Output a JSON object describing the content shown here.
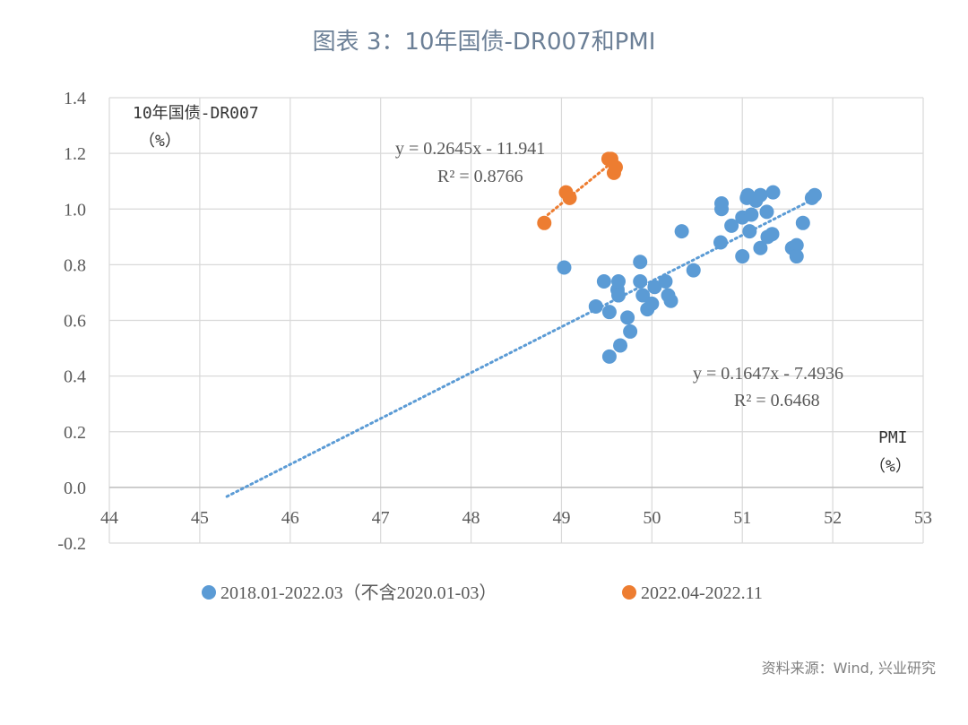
{
  "title": "图表 3：10年国债-DR007和PMI",
  "source": "资料来源：Wind, 兴业研究",
  "chart_data": {
    "type": "scatter",
    "ylabel_line1": "10年国债-DR007",
    "ylabel_line2": "（%）",
    "xlabel_line1": "PMI",
    "xlabel_line2": "（%）",
    "xlim": [
      44,
      53
    ],
    "ylim": [
      -0.2,
      1.4
    ],
    "x_ticks": [
      "44",
      "45",
      "46",
      "47",
      "48",
      "49",
      "50",
      "51",
      "52",
      "53"
    ],
    "y_ticks": [
      "-0.2",
      "0.0",
      "0.2",
      "0.4",
      "0.6",
      "0.8",
      "1.0",
      "1.2",
      "1.4"
    ],
    "grid": true,
    "legend_position": "bottom",
    "series": [
      {
        "name": "2018.01-2022.03（不含2020.01-03）",
        "color": "#5b9bd5",
        "trendline": {
          "equation": "y = 0.1647x - 7.4936",
          "r2": "R² = 0.6468",
          "slope": 0.1647,
          "intercept": -7.4936,
          "x_range": [
            45.3,
            51.8
          ]
        },
        "points": [
          [
            49.03,
            0.79
          ],
          [
            49.38,
            0.65
          ],
          [
            49.47,
            0.74
          ],
          [
            49.53,
            0.47
          ],
          [
            49.53,
            0.63
          ],
          [
            49.62,
            0.71
          ],
          [
            49.63,
            0.74
          ],
          [
            49.63,
            0.69
          ],
          [
            49.65,
            0.51
          ],
          [
            49.73,
            0.61
          ],
          [
            49.76,
            0.56
          ],
          [
            49.87,
            0.81
          ],
          [
            49.87,
            0.74
          ],
          [
            49.9,
            0.69
          ],
          [
            49.95,
            0.64
          ],
          [
            50.0,
            0.66
          ],
          [
            50.03,
            0.72
          ],
          [
            50.15,
            0.74
          ],
          [
            50.18,
            0.69
          ],
          [
            50.21,
            0.67
          ],
          [
            50.33,
            0.92
          ],
          [
            50.46,
            0.78
          ],
          [
            50.76,
            0.88
          ],
          [
            50.77,
            1.0
          ],
          [
            50.77,
            1.02
          ],
          [
            50.88,
            0.94
          ],
          [
            51.0,
            0.83
          ],
          [
            51.0,
            0.97
          ],
          [
            51.05,
            1.04
          ],
          [
            51.06,
            1.05
          ],
          [
            51.08,
            0.92
          ],
          [
            51.1,
            0.98
          ],
          [
            51.15,
            1.03
          ],
          [
            51.2,
            0.86
          ],
          [
            51.2,
            1.05
          ],
          [
            51.27,
            0.99
          ],
          [
            51.28,
            0.9
          ],
          [
            51.33,
            0.91
          ],
          [
            51.34,
            1.06
          ],
          [
            51.55,
            0.86
          ],
          [
            51.6,
            0.87
          ],
          [
            51.6,
            0.83
          ],
          [
            51.67,
            0.95
          ],
          [
            51.77,
            1.04
          ],
          [
            51.8,
            1.05
          ]
        ]
      },
      {
        "name": "2022.04-2022.11",
        "color": "#ed7d31",
        "trendline": {
          "equation": "y = 0.2645x - 11.941",
          "r2": "R² = 0.8766",
          "slope": 0.2645,
          "intercept": -11.941,
          "x_range": [
            48.85,
            49.6
          ]
        },
        "points": [
          [
            48.81,
            0.95
          ],
          [
            49.05,
            1.06
          ],
          [
            49.09,
            1.04
          ],
          [
            49.52,
            1.18
          ],
          [
            49.55,
            1.18
          ],
          [
            49.58,
            1.13
          ],
          [
            49.6,
            1.15
          ]
        ]
      }
    ]
  }
}
